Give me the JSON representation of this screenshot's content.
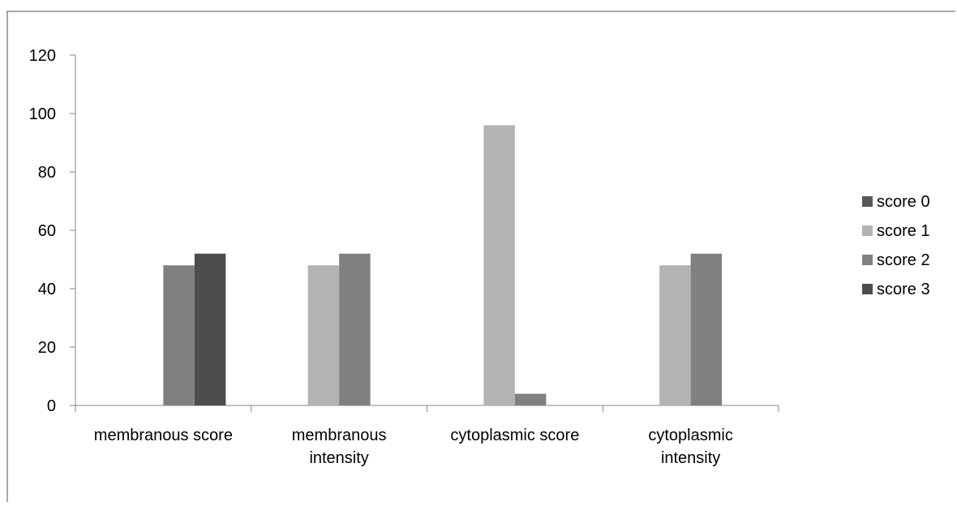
{
  "chart_data": {
    "type": "bar",
    "title": "",
    "xlabel": "",
    "ylabel": "",
    "ylim": [
      0,
      120
    ],
    "yticks": [
      0,
      20,
      40,
      60,
      80,
      100,
      120
    ],
    "grid": false,
    "legend_position": "right",
    "categories": [
      [
        "membranous score"
      ],
      [
        "membranous",
        "intensity"
      ],
      [
        "cytoplasmic score"
      ],
      [
        "cytoplasmic",
        "intensity"
      ]
    ],
    "series": [
      {
        "name": "score 0",
        "color": "#595959",
        "values": [
          0,
          0,
          0,
          0
        ]
      },
      {
        "name": "score 1",
        "color": "#b3b3b3",
        "values": [
          0,
          48,
          96,
          48
        ]
      },
      {
        "name": "score 2",
        "color": "#808080",
        "values": [
          48,
          52,
          4,
          52
        ]
      },
      {
        "name": "score 3",
        "color": "#4d4d4d",
        "values": [
          52,
          0,
          0,
          0
        ]
      }
    ]
  }
}
